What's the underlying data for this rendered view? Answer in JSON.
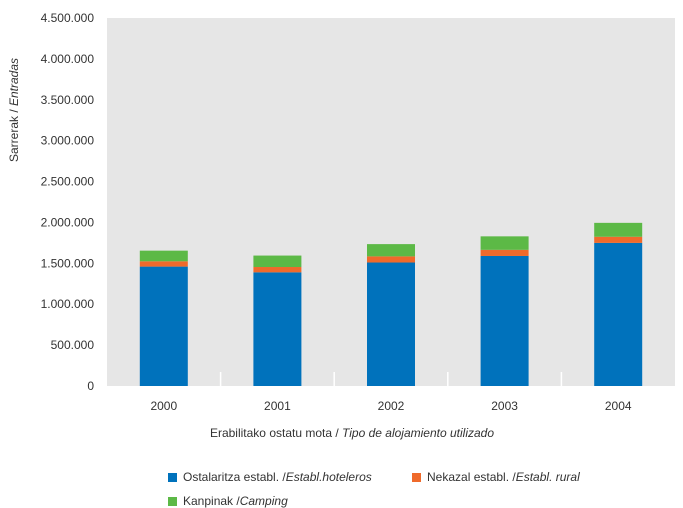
{
  "chart_data": {
    "type": "bar",
    "stacked": true,
    "categories": [
      "2000",
      "2001",
      "2002",
      "2003",
      "2004"
    ],
    "series": [
      {
        "name_main": "Ostalaritza establ. / ",
        "name_italic": "Establ.hoteleros",
        "color": "#0072bc",
        "values": [
          1460000,
          1390000,
          1510000,
          1590000,
          1750000
        ]
      },
      {
        "name_main": "Nekazal establ. / ",
        "name_italic": "Establ. rural",
        "color": "#ef6a2b",
        "values": [
          65000,
          65000,
          75000,
          75000,
          75000
        ]
      },
      {
        "name_main": "Kanpinak / ",
        "name_italic": "Camping",
        "color": "#5cb946",
        "values": [
          130000,
          140000,
          150000,
          165000,
          170000
        ]
      }
    ],
    "y_ticks": [
      "0",
      "500.000",
      "1.000.000",
      "1.500.000",
      "2.000.000",
      "2.500.000",
      "3.000.000",
      "3.500.000",
      "4.000.000",
      "4.500.000"
    ],
    "ylim": [
      0,
      4500000
    ],
    "ylabel_main": "Sarrerak / ",
    "ylabel_italic": "Entradas",
    "xlabel_main": "Erabilitako ostatu mota / ",
    "xlabel_italic": "Tipo de alojamiento utilizado",
    "grid": false,
    "plot_background": "#e6e6e6",
    "legend_position": "bottom"
  }
}
